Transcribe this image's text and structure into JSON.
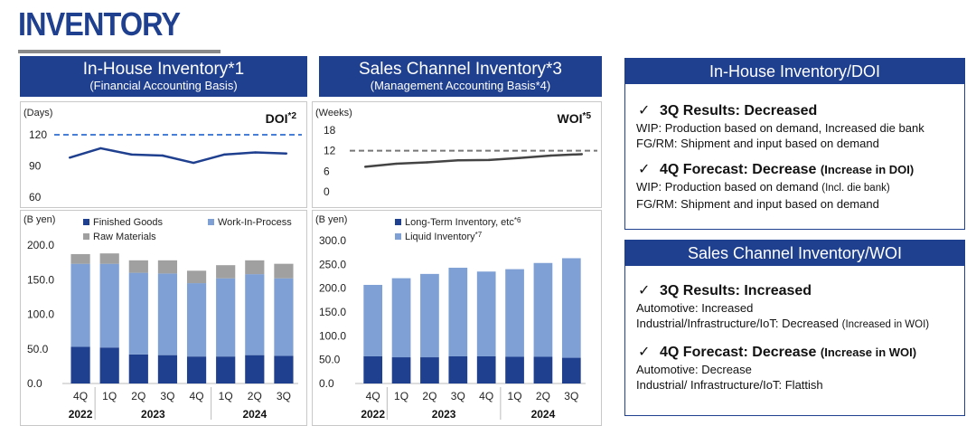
{
  "page": {
    "title": "INVENTORY"
  },
  "left_panel": {
    "title": "In-House Inventory*1",
    "subtitle": "(Financial Accounting Basis)"
  },
  "mid_panel": {
    "title": "Sales Channel Inventory*3",
    "subtitle": "(Management Accounting Basis*4)"
  },
  "right_boxes": [
    {
      "header": "In-House Inventory/DOI",
      "sections": [
        {
          "check": "✓",
          "heading": "3Q Results: Decreased",
          "note": "",
          "lines": [
            {
              "text": "WIP: Production based on demand, Increased die bank",
              "note": ""
            },
            {
              "text": "FG/RM: Shipment and input based on demand",
              "note": ""
            }
          ]
        },
        {
          "check": "✓",
          "heading": "4Q Forecast: Decrease",
          "note": "(Increase in DOI)",
          "lines": [
            {
              "text": "WIP: Production based on demand",
              "note": "(Incl. die bank)"
            },
            {
              "text": "FG/RM: Shipment and input based on demand",
              "note": ""
            }
          ]
        }
      ]
    },
    {
      "header": "Sales Channel Inventory/WOI",
      "sections": [
        {
          "check": "✓",
          "heading": "3Q Results: Increased",
          "note": "",
          "lines": [
            {
              "text": "Automotive: Increased",
              "note": ""
            },
            {
              "text": "Industrial/Infrastructure/IoT: Decreased",
              "note": "(Increased in WOI)"
            }
          ]
        },
        {
          "check": "✓",
          "heading": "4Q Forecast: Decrease",
          "note": "(Increase in WOI)",
          "lines": [
            {
              "text": "Automotive: Decrease",
              "note": ""
            },
            {
              "text": "Industrial/ Infrastructure/IoT: Flattish",
              "note": ""
            }
          ]
        }
      ]
    }
  ],
  "chart_data": [
    {
      "type": "line",
      "title": "DOI*2",
      "ylabel": "(Days)",
      "x": [
        "4Q 2022",
        "1Q 2023",
        "2Q 2023",
        "3Q 2023",
        "4Q 2023",
        "1Q 2024",
        "2Q 2024",
        "3Q 2024"
      ],
      "yticks": [
        "120",
        "90",
        "60"
      ],
      "ylim": [
        60,
        120
      ],
      "series": [
        {
          "values": [
            98,
            107,
            101,
            100,
            93,
            101,
            103,
            102
          ],
          "color": "#1f3f8f"
        }
      ],
      "reference_line": {
        "value": 120,
        "color": "#4a7fd6",
        "style": "dashed"
      },
      "grid": false
    },
    {
      "type": "line",
      "title": "WOI*5",
      "ylabel": "(Weeks)",
      "x": [
        "4Q 2022",
        "1Q 2023",
        "2Q 2023",
        "3Q 2023",
        "4Q 2023",
        "1Q 2024",
        "2Q 2024",
        "3Q 2024"
      ],
      "yticks": [
        "18",
        "12",
        "6",
        "0"
      ],
      "ylim": [
        0,
        18
      ],
      "series": [
        {
          "values": [
            7.3,
            8.2,
            8.6,
            9.2,
            9.3,
            9.9,
            10.6,
            11.0
          ],
          "color": "#444444"
        }
      ],
      "reference_line": {
        "value": 12,
        "color": "#777777",
        "style": "dashed"
      },
      "grid": false
    },
    {
      "type": "bar",
      "stacked": true,
      "ylabel": "(B yen)",
      "categories": [
        "4Q",
        "1Q",
        "2Q",
        "3Q",
        "4Q",
        "1Q",
        "2Q",
        "3Q"
      ],
      "year_groups": [
        {
          "label": "2022",
          "span": [
            0,
            0
          ]
        },
        {
          "label": "2023",
          "span": [
            1,
            4
          ]
        },
        {
          "label": "2024",
          "span": [
            5,
            7
          ]
        }
      ],
      "yticks": [
        "200.0",
        "150.0",
        "100.0",
        "50.0",
        "0.0"
      ],
      "ylim": [
        0,
        200
      ],
      "legend_placement": "top",
      "series": [
        {
          "name": "Finished Goods",
          "color": "#1f3f8f",
          "values": [
            53,
            52,
            42,
            41,
            39,
            39,
            41,
            40
          ]
        },
        {
          "name": "Work-In-Process",
          "color": "#7ea0d4",
          "values": [
            120,
            121,
            118,
            118,
            106,
            113,
            117,
            112
          ]
        },
        {
          "name": "Raw Materials",
          "color": "#a0a0a0",
          "values": [
            14,
            15,
            18,
            19,
            18,
            19,
            20,
            21
          ]
        }
      ]
    },
    {
      "type": "bar",
      "stacked": true,
      "ylabel": "(B yen)",
      "categories": [
        "4Q",
        "1Q",
        "2Q",
        "3Q",
        "4Q",
        "1Q",
        "2Q",
        "3Q"
      ],
      "year_groups": [
        {
          "label": "2022",
          "span": [
            0,
            0
          ]
        },
        {
          "label": "2023",
          "span": [
            1,
            4
          ]
        },
        {
          "label": "2024",
          "span": [
            5,
            7
          ]
        }
      ],
      "yticks": [
        "300.0",
        "250.0",
        "200.0",
        "150.0",
        "100.0",
        "50.0",
        "0.0"
      ],
      "ylim": [
        0,
        300
      ],
      "legend_placement": "top",
      "series": [
        {
          "name": "Long-Term Inventory, etc*6",
          "color": "#1f3f8f",
          "values": [
            57,
            55,
            55,
            57,
            57,
            56,
            56,
            54
          ]
        },
        {
          "name": "Liquid Inventory*7",
          "color": "#7ea0d4",
          "values": [
            150,
            166,
            175,
            186,
            178,
            184,
            197,
            209
          ]
        }
      ]
    }
  ]
}
